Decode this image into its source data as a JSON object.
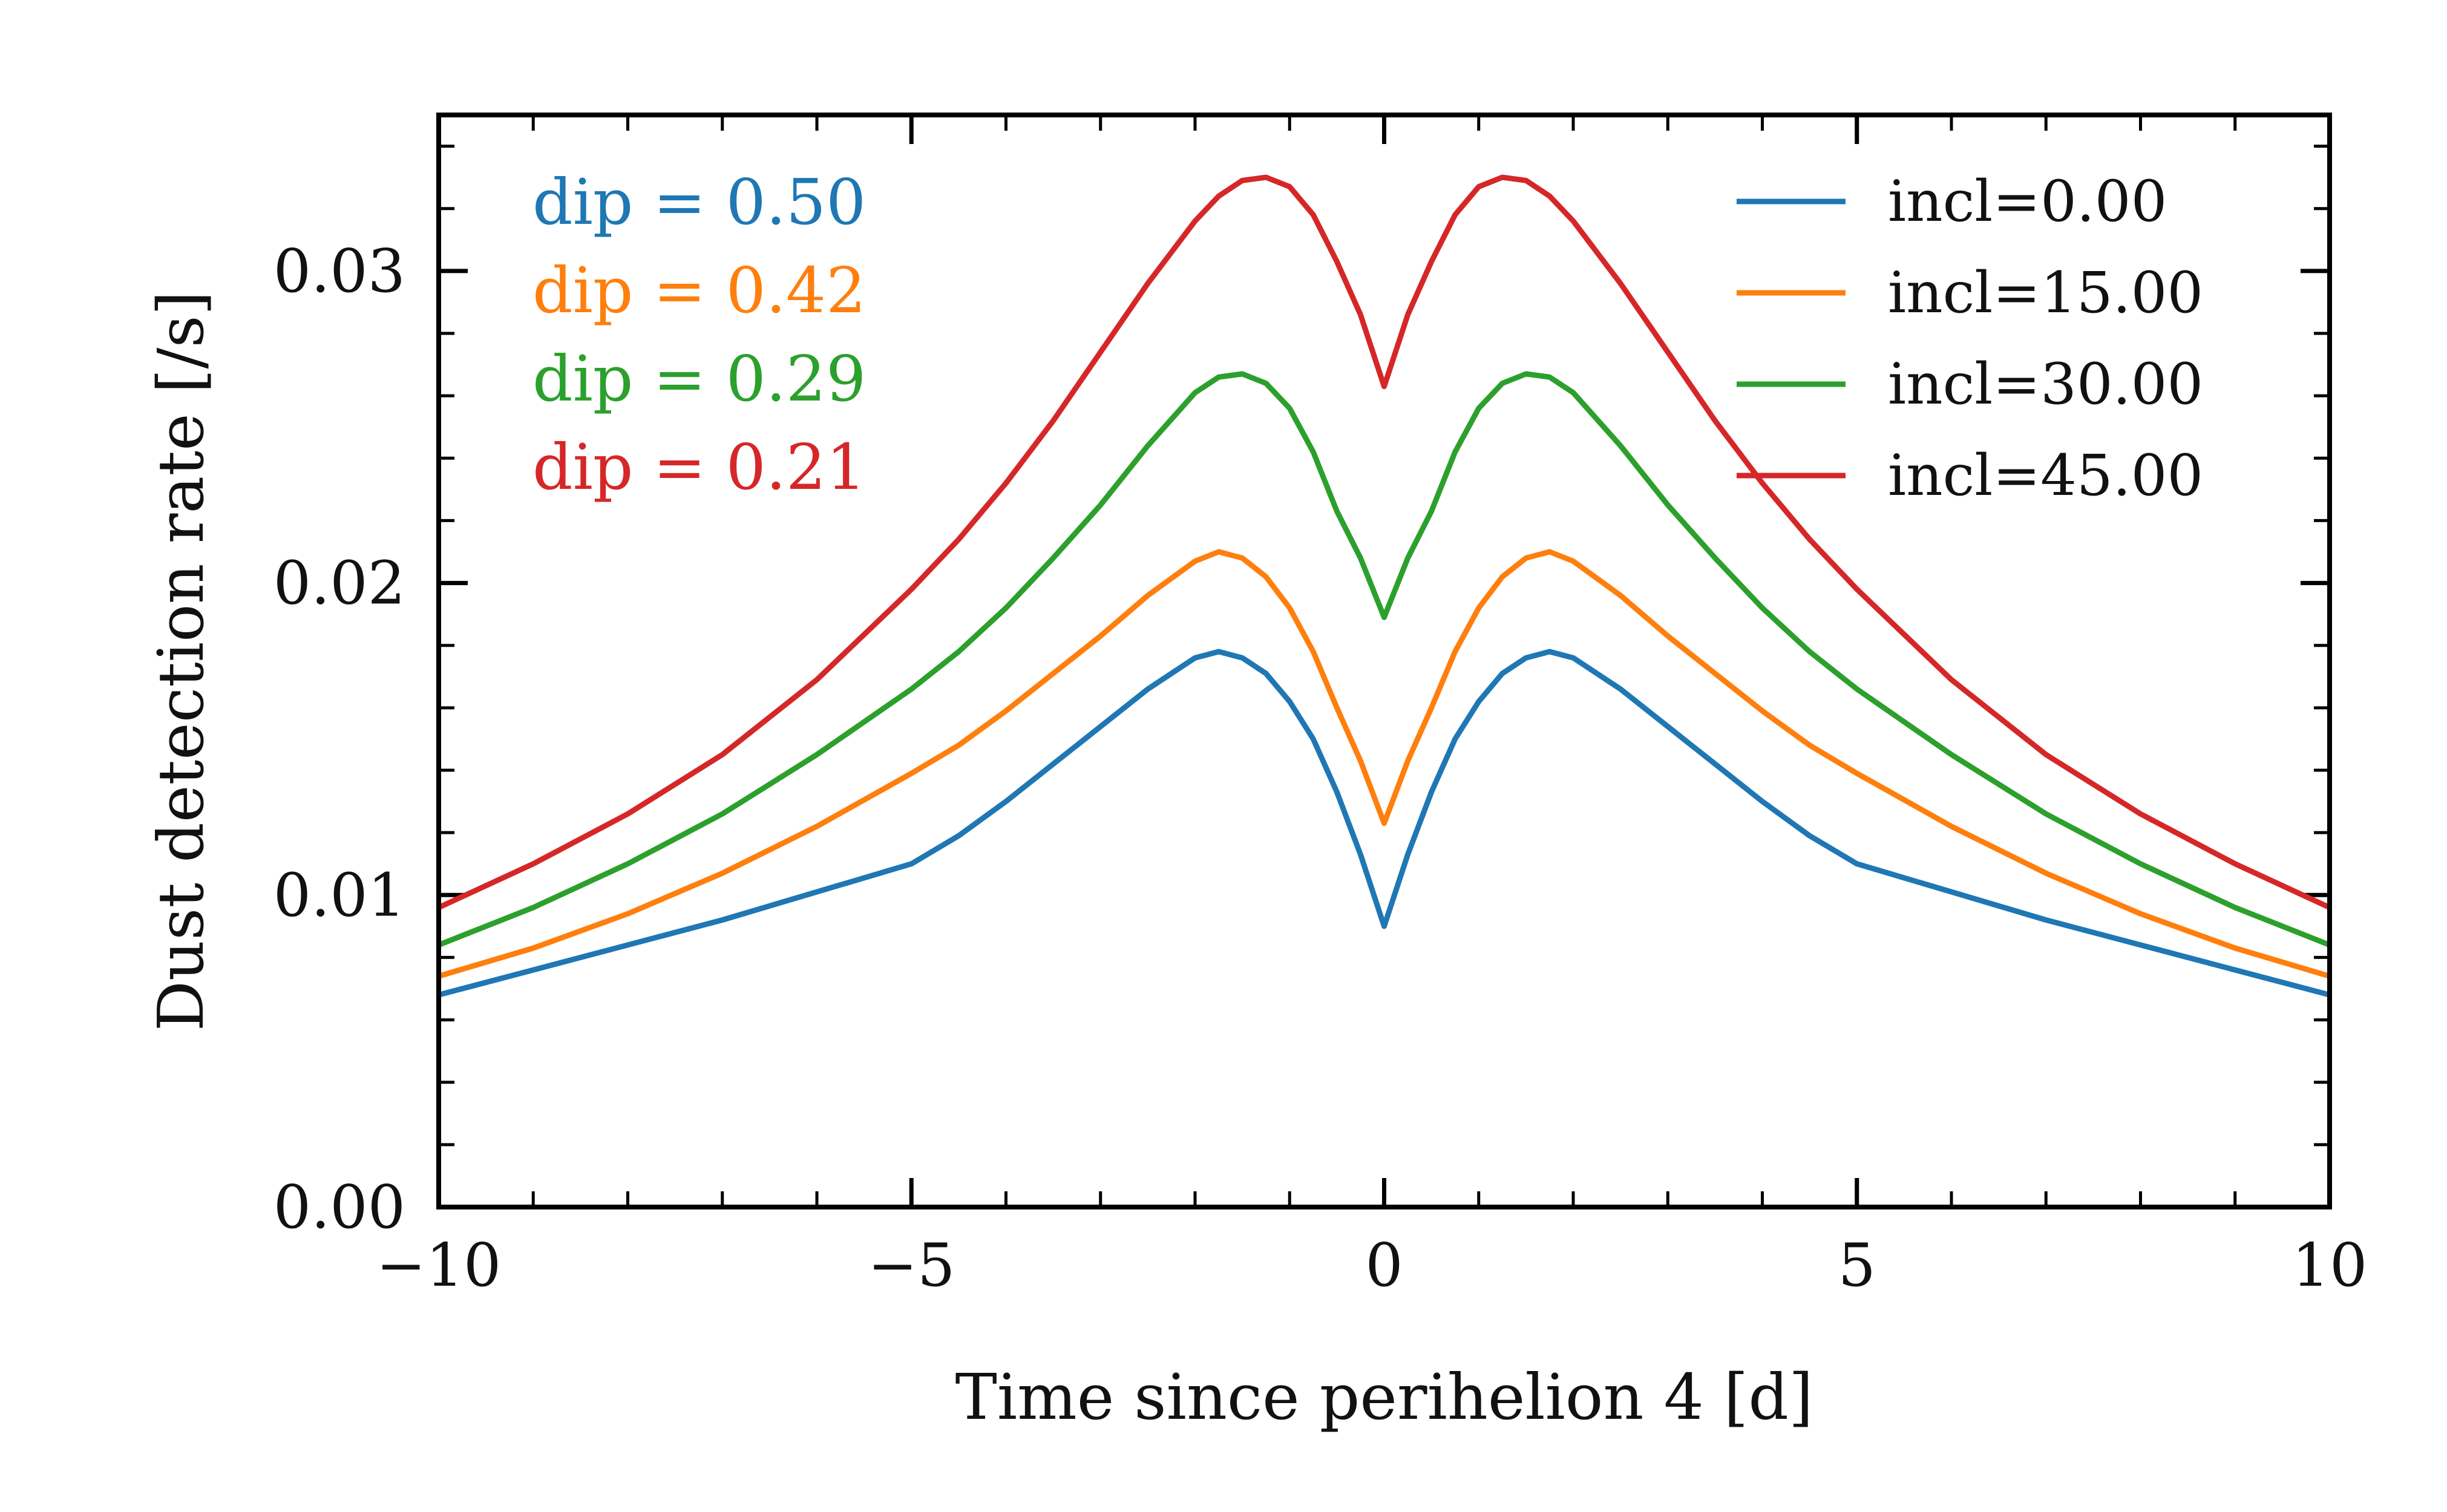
{
  "chart_data": {
    "type": "line",
    "xlabel": "Time since perihelion 4 [d]",
    "ylabel": "Dust detection rate [/s]",
    "xlim": [
      -10,
      10
    ],
    "ylim": [
      0,
      0.035
    ],
    "x_ticks": [
      -10,
      -5,
      0,
      5,
      10
    ],
    "x_tick_labels": [
      "−10",
      "−5",
      "0",
      "5",
      "10"
    ],
    "y_ticks": [
      0.0,
      0.01,
      0.02,
      0.03
    ],
    "y_tick_labels": [
      "0.00",
      "0.01",
      "0.02",
      "0.03"
    ],
    "grid": false,
    "legend_position": "top-right",
    "series": [
      {
        "name": "incl=0.00",
        "color": "#1f77b4",
        "x": [
          -10,
          -9,
          -8,
          -7,
          -6,
          -5,
          -4.5,
          -4,
          -3.5,
          -3,
          -2.5,
          -2,
          -1.75,
          -1.5,
          -1.25,
          -1,
          -0.75,
          -0.5,
          -0.25,
          0,
          0.25,
          0.5,
          0.75,
          1,
          1.25,
          1.5,
          1.75,
          2,
          2.5,
          3,
          3.5,
          4,
          4.5,
          5,
          6,
          7,
          8,
          9,
          10
        ],
        "y": [
          0.0068,
          0.0076,
          0.0084,
          0.0092,
          0.0101,
          0.011,
          0.0119,
          0.013,
          0.0142,
          0.0154,
          0.0166,
          0.0176,
          0.0178,
          0.0176,
          0.0171,
          0.0162,
          0.015,
          0.0133,
          0.0113,
          0.009,
          0.0113,
          0.0133,
          0.015,
          0.0162,
          0.0171,
          0.0176,
          0.0178,
          0.0176,
          0.0166,
          0.0154,
          0.0142,
          0.013,
          0.0119,
          0.011,
          0.0101,
          0.0092,
          0.0084,
          0.0076,
          0.0068
        ]
      },
      {
        "name": "incl=15.00",
        "color": "#ff7f0e",
        "x": [
          -10,
          -9,
          -8,
          -7,
          -6,
          -5,
          -4.5,
          -4,
          -3.5,
          -3,
          -2.5,
          -2,
          -1.75,
          -1.5,
          -1.25,
          -1,
          -0.75,
          -0.5,
          -0.25,
          0,
          0.25,
          0.5,
          0.75,
          1,
          1.25,
          1.5,
          1.75,
          2,
          2.5,
          3,
          3.5,
          4,
          4.5,
          5,
          6,
          7,
          8,
          9,
          10
        ],
        "y": [
          0.0074,
          0.0083,
          0.0094,
          0.0107,
          0.0122,
          0.0139,
          0.0148,
          0.0159,
          0.0171,
          0.0183,
          0.0196,
          0.0207,
          0.021,
          0.0208,
          0.0202,
          0.0192,
          0.0178,
          0.016,
          0.0143,
          0.0123,
          0.0143,
          0.016,
          0.0178,
          0.0192,
          0.0202,
          0.0208,
          0.021,
          0.0207,
          0.0196,
          0.0183,
          0.0171,
          0.0159,
          0.0148,
          0.0139,
          0.0122,
          0.0107,
          0.0094,
          0.0083,
          0.0074
        ]
      },
      {
        "name": "incl=30.00",
        "color": "#2ca02c",
        "x": [
          -10,
          -9,
          -8,
          -7,
          -6,
          -5,
          -4.5,
          -4,
          -3.5,
          -3,
          -2.5,
          -2,
          -1.75,
          -1.5,
          -1.25,
          -1,
          -0.75,
          -0.5,
          -0.25,
          0,
          0.25,
          0.5,
          0.75,
          1,
          1.25,
          1.5,
          1.75,
          2,
          2.5,
          3,
          3.5,
          4,
          4.5,
          5,
          6,
          7,
          8,
          9,
          10
        ],
        "y": [
          0.0084,
          0.0096,
          0.011,
          0.0126,
          0.0145,
          0.0166,
          0.0178,
          0.0192,
          0.0208,
          0.0225,
          0.0244,
          0.0261,
          0.0266,
          0.0267,
          0.0264,
          0.0256,
          0.0242,
          0.0223,
          0.0208,
          0.0189,
          0.0208,
          0.0223,
          0.0242,
          0.0256,
          0.0264,
          0.0267,
          0.0266,
          0.0261,
          0.0244,
          0.0225,
          0.0208,
          0.0192,
          0.0178,
          0.0166,
          0.0145,
          0.0126,
          0.011,
          0.0096,
          0.0084
        ]
      },
      {
        "name": "incl=45.00",
        "color": "#d62728",
        "x": [
          -10,
          -9,
          -8,
          -7,
          -6,
          -5,
          -4.5,
          -4,
          -3.5,
          -3,
          -2.5,
          -2,
          -1.75,
          -1.5,
          -1.25,
          -1,
          -0.75,
          -0.5,
          -0.25,
          0,
          0.25,
          0.5,
          0.75,
          1,
          1.25,
          1.5,
          1.75,
          2,
          2.5,
          3,
          3.5,
          4,
          4.5,
          5,
          6,
          7,
          8,
          9,
          10
        ],
        "y": [
          0.0096,
          0.011,
          0.0126,
          0.0145,
          0.0169,
          0.0198,
          0.0214,
          0.0232,
          0.0252,
          0.0274,
          0.0296,
          0.0316,
          0.0324,
          0.0329,
          0.033,
          0.0327,
          0.0318,
          0.0303,
          0.0286,
          0.0263,
          0.0286,
          0.0303,
          0.0318,
          0.0327,
          0.033,
          0.0329,
          0.0324,
          0.0316,
          0.0296,
          0.0274,
          0.0252,
          0.0232,
          0.0214,
          0.0198,
          0.0169,
          0.0145,
          0.0126,
          0.011,
          0.0096
        ]
      }
    ],
    "annotations": [
      {
        "text": "dip = 0.50",
        "color": "#1f77b4"
      },
      {
        "text": "dip = 0.42",
        "color": "#ff7f0e"
      },
      {
        "text": "dip = 0.29",
        "color": "#2ca02c"
      },
      {
        "text": "dip = 0.21",
        "color": "#d62728"
      }
    ]
  }
}
